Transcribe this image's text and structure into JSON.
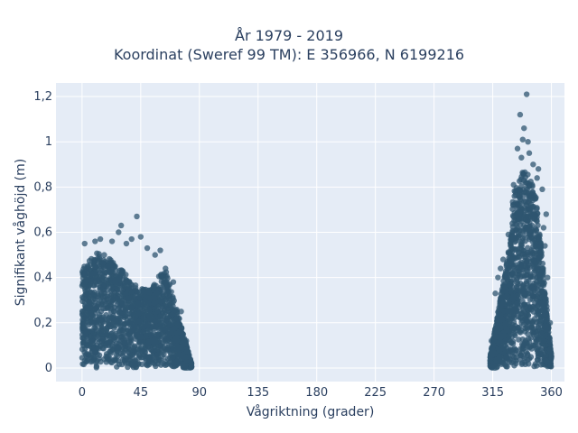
{
  "chart_data": {
    "type": "scatter",
    "title_line1": "År 1979 - 2019",
    "title_line2": "Koordinat (Sweref 99 TM): E 356966, N 6199216",
    "xlabel": "Vågriktning (grader)",
    "ylabel": "Signifikant våghöjd (m)",
    "xlim": [
      -20,
      370
    ],
    "ylim": [
      -0.06,
      1.26
    ],
    "xticks": [
      0,
      45,
      90,
      135,
      180,
      225,
      270,
      315,
      360
    ],
    "xtick_labels": [
      "0",
      "45",
      "90",
      "135",
      "180",
      "225",
      "270",
      "315",
      "360"
    ],
    "yticks": [
      0,
      0.2,
      0.4,
      0.6,
      0.8,
      1,
      1.2
    ],
    "ytick_labels": [
      "0",
      "0,2",
      "0,4",
      "0,6",
      "0,8",
      "1",
      "1,2"
    ],
    "grid": true,
    "marker_color": "#2f5570",
    "plot_background": "#e5ecf6",
    "clusters": [
      {
        "x_range": [
          0,
          84
        ],
        "y_range": [
          0.0,
          0.67
        ],
        "density": "high"
      },
      {
        "x_range": [
          313,
          360
        ],
        "y_range": [
          0.0,
          1.21
        ],
        "density": "high"
      }
    ],
    "points": [
      [
        42,
        0.67
      ],
      [
        30,
        0.63
      ],
      [
        28,
        0.6
      ],
      [
        45,
        0.58
      ],
      [
        14,
        0.57
      ],
      [
        10,
        0.56
      ],
      [
        2,
        0.55
      ],
      [
        23,
        0.56
      ],
      [
        60,
        0.52
      ],
      [
        50,
        0.53
      ],
      [
        34,
        0.55
      ],
      [
        38,
        0.57
      ],
      [
        17,
        0.5
      ],
      [
        56,
        0.5
      ],
      [
        64,
        0.44
      ],
      [
        70,
        0.38
      ],
      [
        76,
        0.25
      ],
      [
        80,
        0.12
      ],
      [
        84,
        0.02
      ],
      [
        82,
        0.05
      ],
      [
        341,
        1.21
      ],
      [
        336,
        1.12
      ],
      [
        339,
        1.06
      ],
      [
        338,
        1.01
      ],
      [
        342,
        1.0
      ],
      [
        334,
        0.97
      ],
      [
        343,
        0.95
      ],
      [
        337,
        0.93
      ],
      [
        346,
        0.9
      ],
      [
        350,
        0.88
      ],
      [
        349,
        0.84
      ],
      [
        331,
        0.81
      ],
      [
        353,
        0.79
      ],
      [
        356,
        0.68
      ],
      [
        354,
        0.62
      ],
      [
        355,
        0.54
      ],
      [
        327,
        0.59
      ],
      [
        323,
        0.48
      ],
      [
        321,
        0.44
      ],
      [
        319,
        0.4
      ],
      [
        317,
        0.33
      ],
      [
        314,
        0.12
      ],
      [
        313,
        0.01
      ],
      [
        357,
        0.4
      ],
      [
        359,
        0.2
      ],
      [
        360,
        0.05
      ]
    ]
  }
}
